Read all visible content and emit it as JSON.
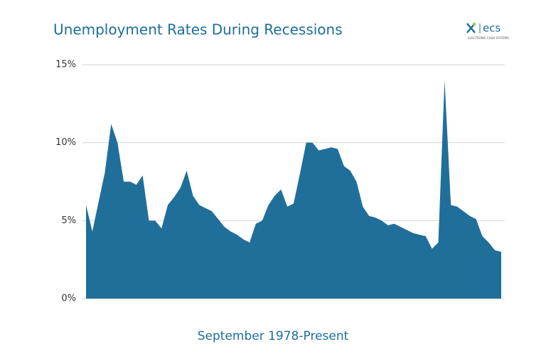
{
  "chart_data": {
    "type": "area",
    "title": "Unemployment Rates During Recessions",
    "xlabel": "September 1978-Present",
    "logo": {
      "text": "ecs",
      "tagline": "ELECTRONIC CASH SYSTEMS"
    },
    "color": "#1f6f9a",
    "categories": [
      null,
      null,
      null,
      null,
      null,
      null,
      null,
      null,
      null,
      null,
      null,
      null,
      null,
      null,
      null,
      null,
      null,
      null,
      null,
      null,
      null,
      null,
      null,
      null,
      null,
      null,
      null,
      null,
      null,
      null,
      null,
      null,
      null,
      null,
      null,
      null,
      null,
      null,
      null,
      null,
      null,
      null,
      null,
      null,
      null,
      null,
      null,
      null,
      null,
      null,
      null,
      null,
      null,
      null,
      null,
      null,
      null,
      null,
      null,
      null,
      null,
      null,
      null,
      null,
      null,
      null,
      null
    ],
    "values": [
      6.0,
      4.3,
      6.2,
      8.1,
      11.2,
      10.0,
      7.5,
      7.5,
      7.3,
      7.9,
      5.0,
      5.0,
      4.5,
      6.0,
      6.5,
      7.1,
      8.2,
      6.6,
      6.0,
      5.8,
      5.6,
      5.1,
      4.6,
      4.3,
      4.1,
      3.8,
      3.6,
      4.8,
      5.0,
      6.0,
      6.6,
      7.0,
      5.9,
      6.1,
      8.0,
      10.0,
      10.0,
      9.5,
      9.6,
      9.7,
      9.6,
      8.5,
      8.2,
      7.5,
      5.9,
      5.3,
      5.2,
      5.0,
      4.7,
      4.8,
      4.6,
      4.4,
      4.2,
      4.1,
      4.0,
      3.2,
      3.6,
      14.0,
      6.0,
      5.9,
      5.6,
      5.3,
      5.1,
      4.0,
      3.6,
      3.1,
      3.0
    ],
    "ylim": [
      0,
      15
    ],
    "yticks": [
      {
        "value": 0,
        "label": "0%"
      },
      {
        "value": 5,
        "label": "5%"
      },
      {
        "value": 10,
        "label": "10%"
      },
      {
        "value": 15,
        "label": "15%"
      }
    ],
    "grid": true
  }
}
